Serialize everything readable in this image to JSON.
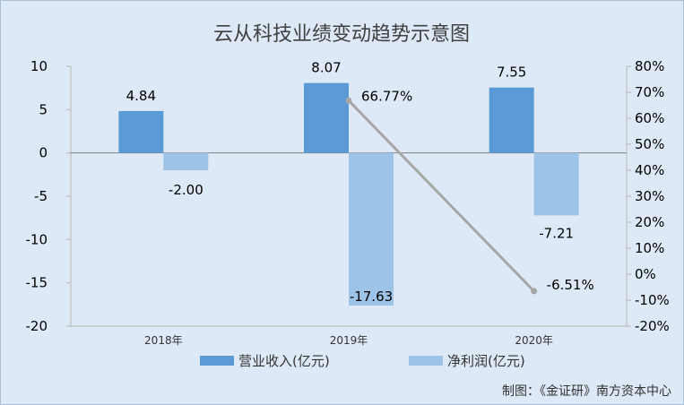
{
  "chart_data": {
    "type": "bar",
    "title": "云从科技业绩变动趋势示意图",
    "categories": [
      "2018年",
      "2019年",
      "2020年"
    ],
    "series": [
      {
        "name": "营业收入(亿元)",
        "type": "bar",
        "axis": "left",
        "color": "#5b9bd5",
        "values": [
          4.84,
          8.07,
          7.55
        ]
      },
      {
        "name": "净利润(亿元)",
        "type": "bar",
        "axis": "left",
        "color": "#9dc3e6",
        "values": [
          -2.0,
          -17.63,
          -7.21
        ]
      },
      {
        "name": "",
        "type": "line",
        "axis": "right",
        "color": "#a6a6a6",
        "values": [
          null,
          66.77,
          -6.51
        ],
        "labels": [
          "",
          "66.77%",
          "-6.51%"
        ]
      }
    ],
    "bar_labels": [
      [
        "4.84",
        "8.07",
        "7.55"
      ],
      [
        "-2.00",
        "-17.63",
        "-7.21"
      ]
    ],
    "ylim_left": [
      -20,
      10
    ],
    "yticks_left": [
      "10",
      "5",
      "0",
      "-5",
      "-10",
      "-15",
      "-20"
    ],
    "ylim_right": [
      -20,
      80
    ],
    "yticks_right": [
      "80%",
      "70%",
      "60%",
      "50%",
      "40%",
      "30%",
      "20%",
      "10%",
      "0%",
      "-10%",
      "-20%"
    ],
    "legend_position": "bottom",
    "grid": false
  },
  "credit": "制图：《金证研》南方资本中心"
}
